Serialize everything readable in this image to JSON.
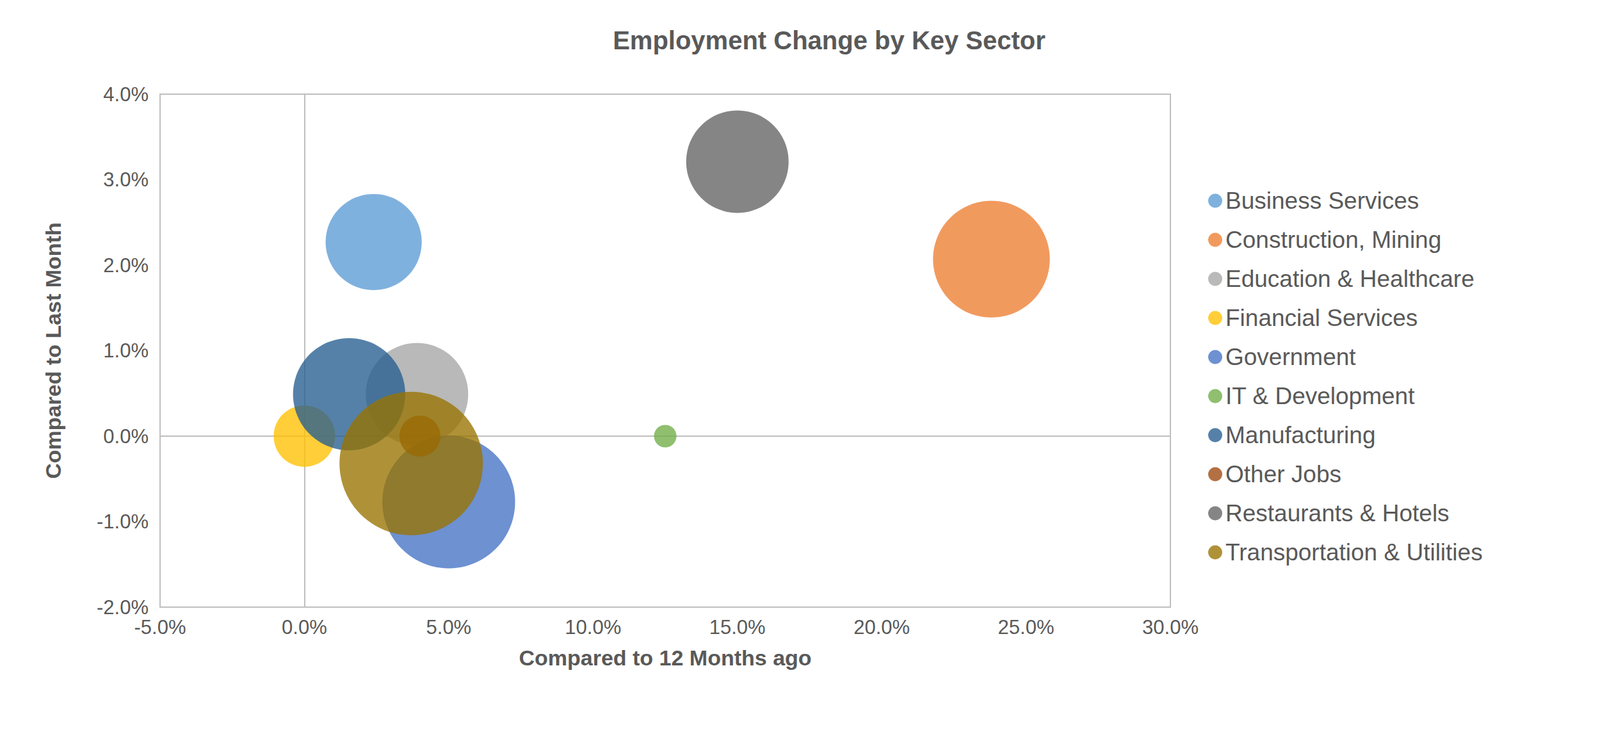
{
  "chart_data": {
    "type": "scatter",
    "title": "Employment Change by Key Sector",
    "x_label": "Compared to 12 Months ago",
    "y_label": "Compared to Last Month",
    "xlim": [
      -5,
      30
    ],
    "xticks": [
      {
        "value": -5,
        "label": "-5.0%"
      },
      {
        "value": 0,
        "label": "0.0%"
      },
      {
        "value": 5,
        "label": "5.0%"
      },
      {
        "value": 10,
        "label": "10.0%"
      },
      {
        "value": 15,
        "label": "15.0%"
      },
      {
        "value": 20,
        "label": "20.0%"
      },
      {
        "value": 25,
        "label": "25.0%"
      },
      {
        "value": 30,
        "label": "30.0%"
      }
    ],
    "ylim": [
      -2,
      4
    ],
    "yticks": [
      {
        "value": -2,
        "label": "-2.0%"
      },
      {
        "value": -1,
        "label": "-1.0%"
      },
      {
        "value": 0,
        "label": "0.0%"
      },
      {
        "value": 1,
        "label": "1.0%"
      },
      {
        "value": 2,
        "label": "2.0%"
      },
      {
        "value": 3,
        "label": "3.0%"
      },
      {
        "value": 4,
        "label": "4.0%"
      }
    ],
    "grid": false,
    "legend": "right",
    "marker": "circle",
    "series": [
      {
        "name": "Business Services",
        "color": "#5B9BD5",
        "x": [
          2.4
        ],
        "values": [
          2.27
        ],
        "size": [
          2200
        ]
      },
      {
        "name": "Construction, Mining",
        "color": "#ED7D31",
        "x": [
          23.8
        ],
        "values": [
          2.07
        ],
        "size": [
          3250
        ]
      },
      {
        "name": "Education & Healthcare",
        "color": "#A5A5A5",
        "x": [
          3.9
        ],
        "values": [
          0.49
        ],
        "size": [
          2500
        ]
      },
      {
        "name": "Financial Services",
        "color": "#FFC000",
        "x": [
          0.0
        ],
        "values": [
          0.0
        ],
        "size": [
          900
        ]
      },
      {
        "name": "Government",
        "color": "#4472C4",
        "x": [
          5.0
        ],
        "values": [
          -0.77
        ],
        "size": [
          4200
        ]
      },
      {
        "name": "IT & Development",
        "color": "#70AD47",
        "x": [
          12.5
        ],
        "values": [
          0.0
        ],
        "size": [
          120
        ]
      },
      {
        "name": "Manufacturing",
        "color": "#255E91",
        "x": [
          1.55
        ],
        "values": [
          0.49
        ],
        "size": [
          3000
        ]
      },
      {
        "name": "Other Jobs",
        "color": "#9E480E",
        "x": [
          4.0
        ],
        "values": [
          0.0
        ],
        "size": [
          400
        ]
      },
      {
        "name": "Restaurants & Hotels",
        "color": "#636363",
        "x": [
          15.0
        ],
        "values": [
          3.21
        ],
        "size": [
          2500
        ]
      },
      {
        "name": "Transportation & Utilities",
        "color": "#997300",
        "x": [
          3.7
        ],
        "values": [
          -0.32
        ],
        "size": [
          4900
        ]
      }
    ]
  }
}
